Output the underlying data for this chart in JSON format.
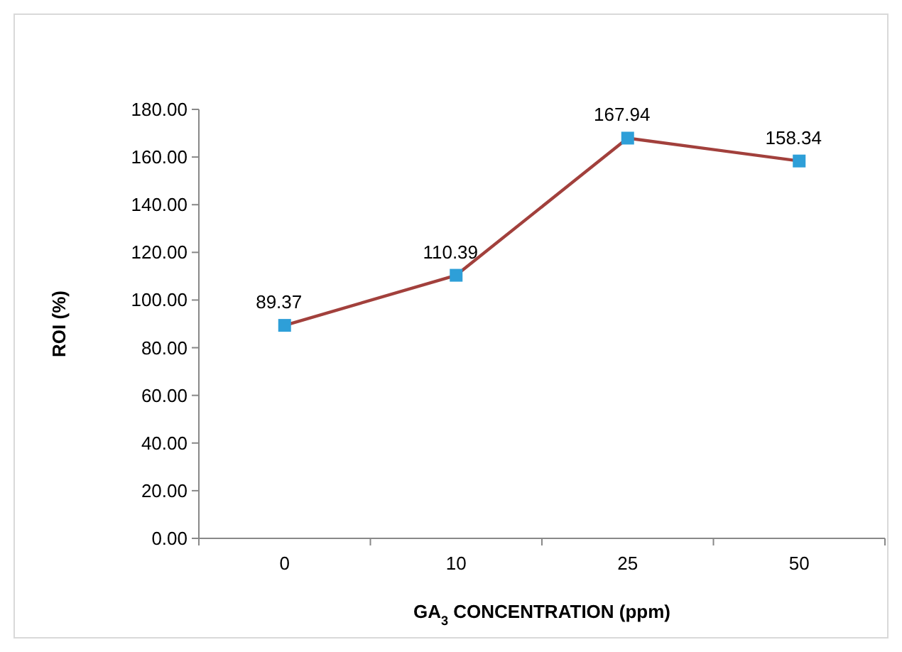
{
  "chart_data": {
    "type": "line",
    "xlabel": "GA$_{3}$ CONCENTRATION (ppm)",
    "ylabel": "ROI (%)",
    "categories": [
      "0",
      "10",
      "25",
      "50"
    ],
    "series": [
      {
        "color": "#a2403c",
        "colors": [
          "#2e9fd8",
          "#2e9fd8",
          "#2e9fd8",
          "#2e9fd8"
        ],
        "values": [
          89.37,
          110.39,
          167.94,
          158.34
        ]
      }
    ],
    "marker": "square",
    "data_labels": true,
    "grid": false,
    "ylim": [
      0,
      180
    ],
    "yticks": [
      {
        "value": 0,
        "label": "0.00"
      },
      {
        "value": 20,
        "label": "20.00"
      },
      {
        "value": 40,
        "label": "40.00"
      },
      {
        "value": 60,
        "label": "60.00"
      },
      {
        "value": 80,
        "label": "80.00"
      },
      {
        "value": 100,
        "label": "100.00"
      },
      {
        "value": 120,
        "label": "120.00"
      },
      {
        "value": 140,
        "label": "140.00"
      },
      {
        "value": 160,
        "label": "160.00"
      },
      {
        "value": 180,
        "label": "180.00"
      }
    ]
  }
}
